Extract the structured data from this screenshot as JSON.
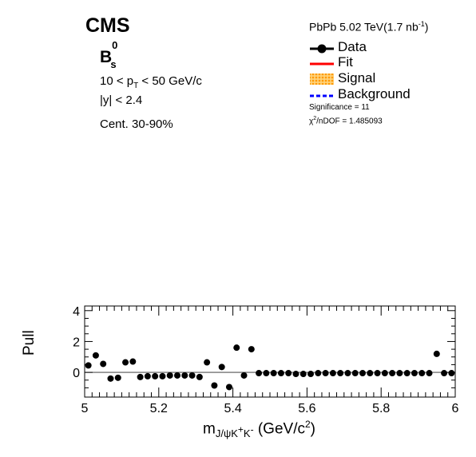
{
  "header": {
    "experiment": "CMS",
    "particle": {
      "base": "B",
      "sup": "0",
      "sub": "s"
    },
    "pt_cut": {
      "pre": "10 < p",
      "sub": "T",
      "post": " < 50 GeV/c"
    },
    "y_cut": "|y| < 2.4",
    "centrality": "Cent. 30-90%",
    "lumi": {
      "main": "PbPb 5.02 TeV(1.7 nb",
      "sup": "-1",
      "close": ")"
    }
  },
  "legend": {
    "entries": [
      {
        "label": "Data",
        "style": "marker",
        "color": "#000000"
      },
      {
        "label": "Fit",
        "style": "line",
        "color": "#ff0000"
      },
      {
        "label": "Signal",
        "style": "hatch",
        "color": "#ff9900"
      },
      {
        "label": "Background",
        "style": "dashed",
        "color": "#0000ff"
      }
    ],
    "significance": "Significance = 11",
    "chi2": {
      "pre": "χ",
      "sup": "2",
      "post": "/nDOF = 1.485093"
    }
  },
  "chart_data": {
    "type": "scatter",
    "xlabel": {
      "main": "m",
      "sub": "J/ψK",
      "sup1": "+",
      "mid": "K",
      "sup2": "-",
      "unit_pre": " (GeV/c",
      "unit_sup": "2",
      "unit_post": ")"
    },
    "ylabel": "Pull",
    "xlim": [
      5.0,
      6.0
    ],
    "ylim": [
      -1.6,
      4.3
    ],
    "x_ticks": [
      5,
      5.2,
      5.4,
      5.6,
      5.8,
      6
    ],
    "x_tick_labels": [
      "5",
      "5.2",
      "5.4",
      "5.6",
      "5.8",
      "6"
    ],
    "y_ticks": [
      0,
      2,
      4
    ],
    "y_tick_labels": [
      "0",
      "2",
      "4"
    ],
    "reference_line": 0,
    "series": [
      {
        "x": [
          5.01,
          5.03,
          5.05,
          5.07,
          5.09,
          5.11,
          5.13,
          5.15,
          5.17,
          5.19,
          5.21,
          5.23,
          5.25,
          5.27,
          5.29,
          5.31,
          5.33,
          5.35,
          5.37,
          5.39,
          5.41,
          5.43,
          5.45,
          5.47,
          5.49,
          5.51,
          5.53,
          5.55,
          5.57,
          5.59,
          5.61,
          5.63,
          5.65,
          5.67,
          5.69,
          5.71,
          5.73,
          5.75,
          5.77,
          5.79,
          5.81,
          5.83,
          5.85,
          5.87,
          5.89,
          5.91,
          5.93,
          5.95,
          5.97,
          5.99
        ],
        "y": [
          0.45,
          1.1,
          0.55,
          -0.4,
          -0.35,
          0.65,
          0.7,
          -0.3,
          -0.25,
          -0.25,
          -0.25,
          -0.2,
          -0.2,
          -0.2,
          -0.2,
          -0.3,
          0.65,
          -0.85,
          0.35,
          -0.95,
          1.6,
          -0.2,
          1.5,
          -0.05,
          -0.05,
          -0.05,
          -0.05,
          -0.05,
          -0.1,
          -0.1,
          -0.1,
          -0.05,
          -0.05,
          -0.05,
          -0.05,
          -0.05,
          -0.05,
          -0.05,
          -0.05,
          -0.05,
          -0.05,
          -0.05,
          -0.05,
          -0.05,
          -0.05,
          -0.05,
          -0.05,
          1.2,
          -0.05,
          -0.05
        ]
      }
    ]
  }
}
